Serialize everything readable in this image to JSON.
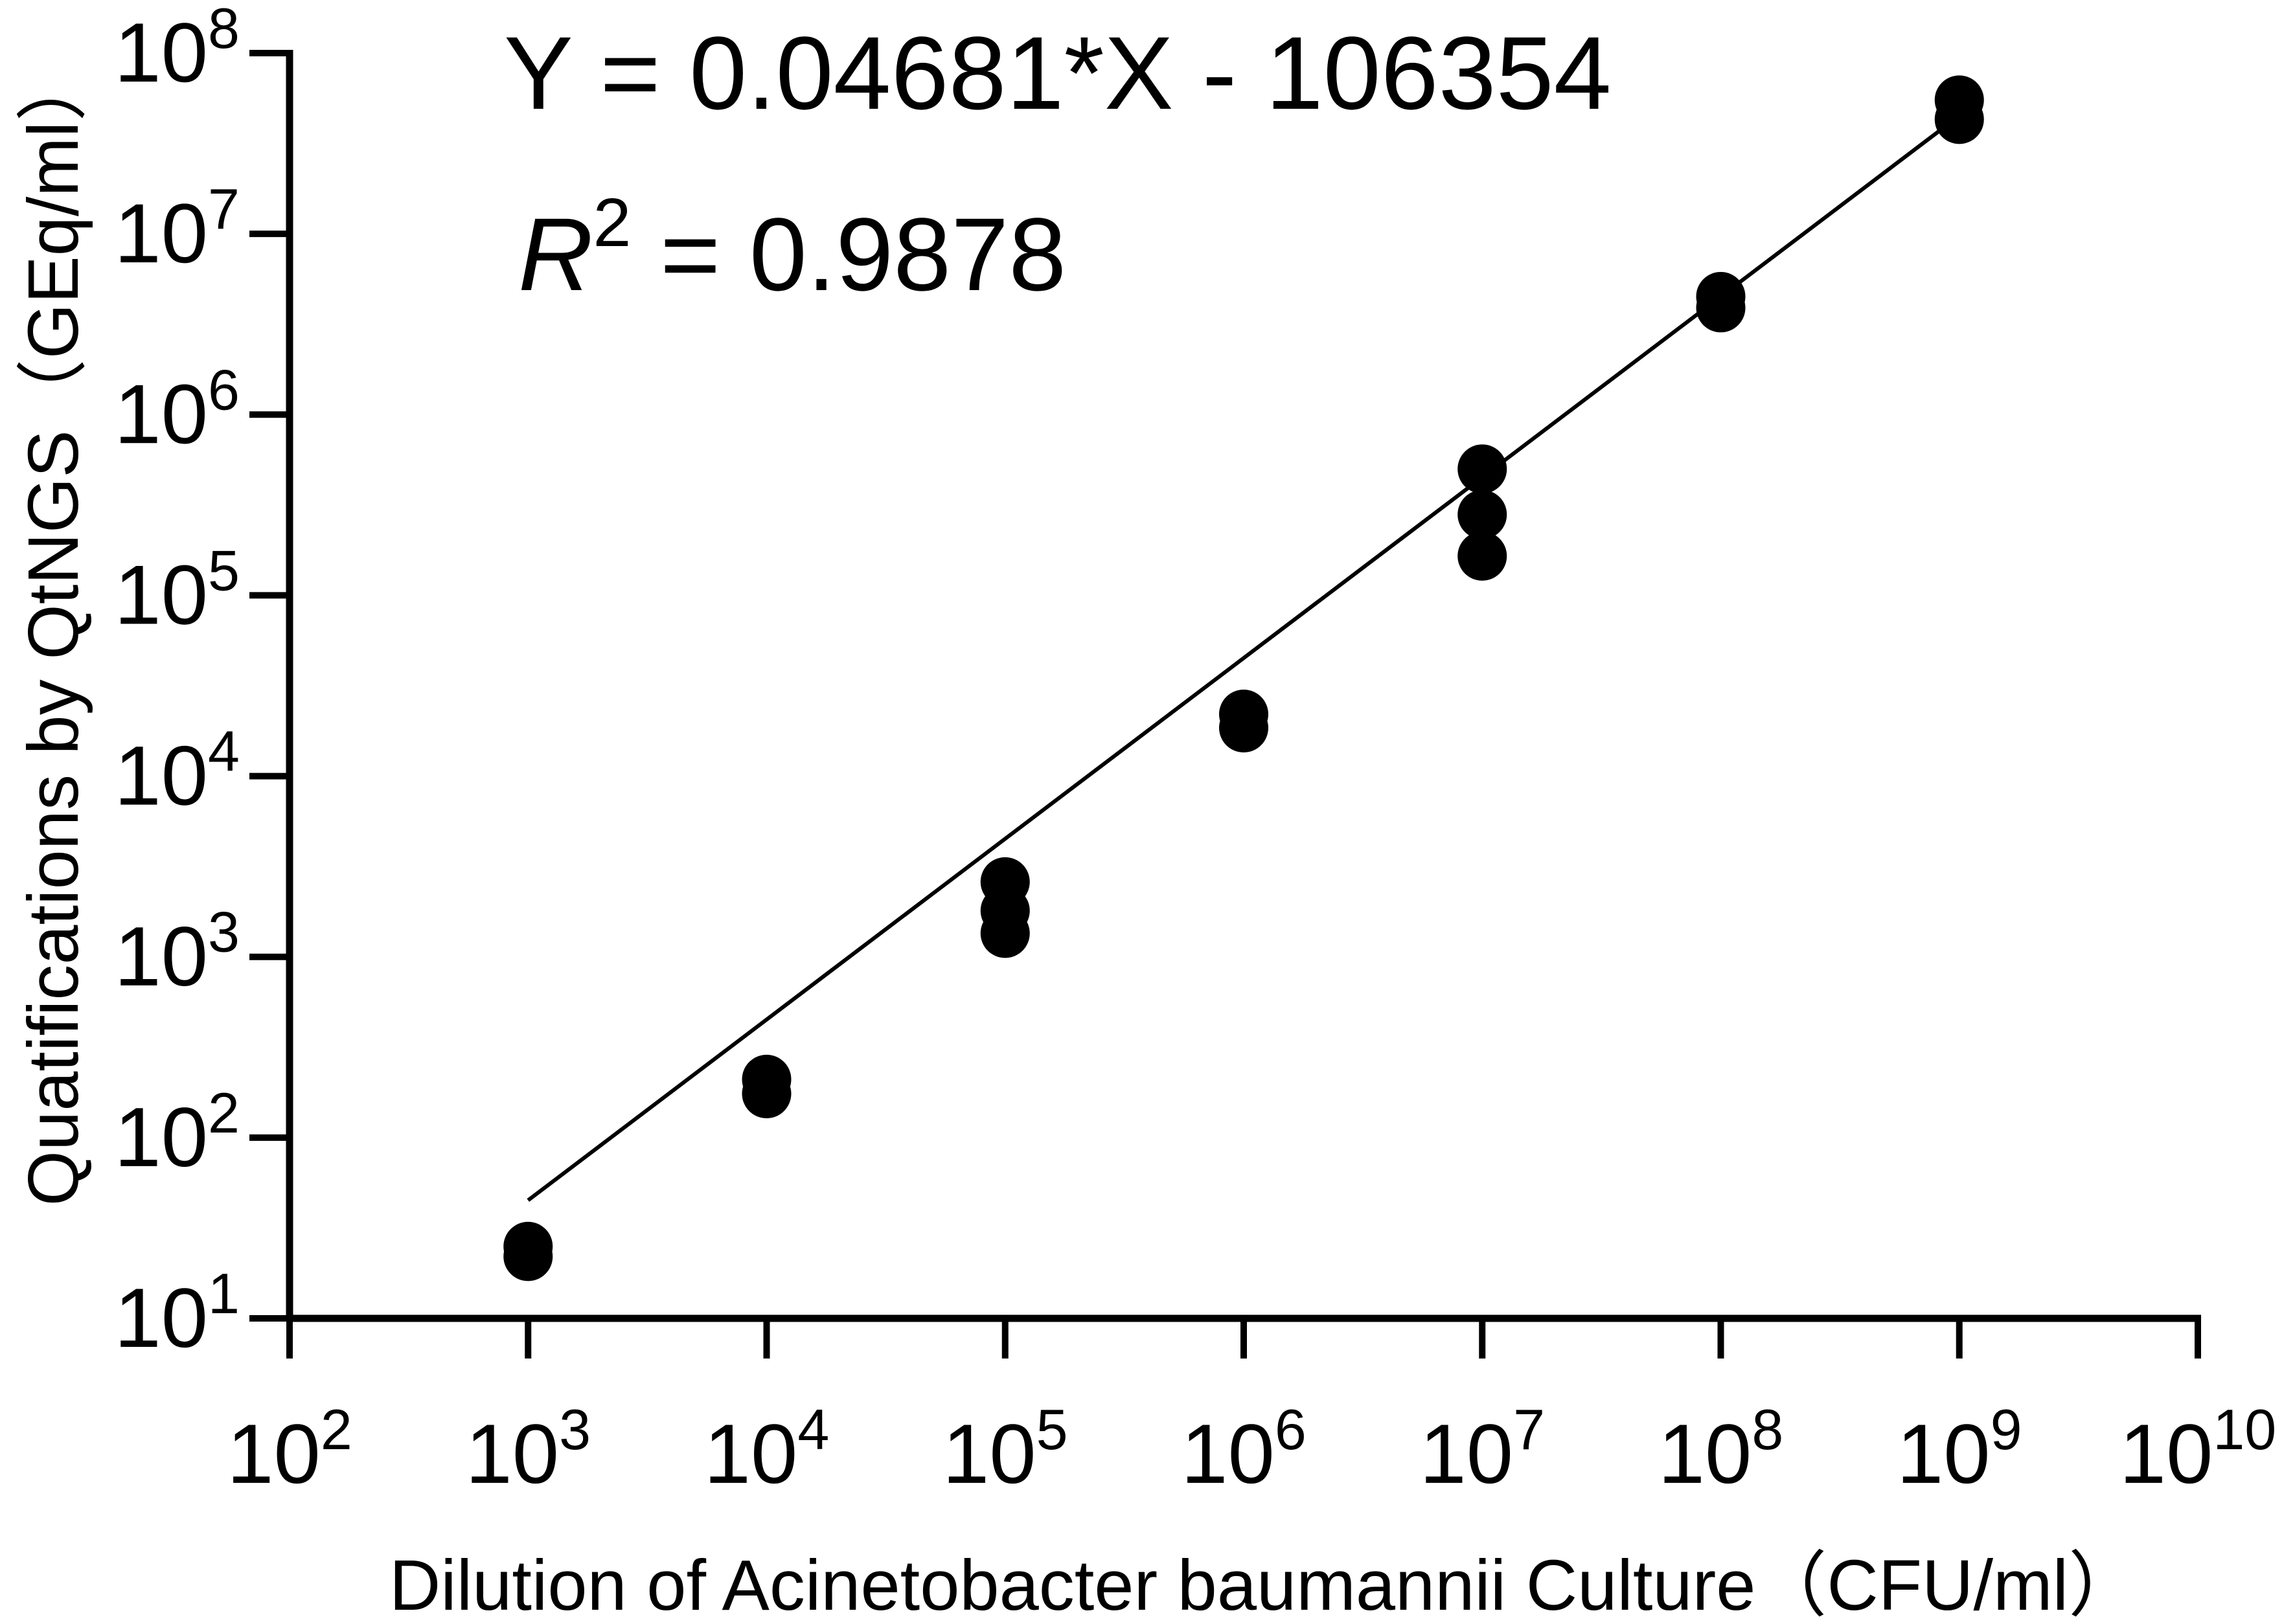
{
  "chart_data": {
    "type": "scatter",
    "x_scale": "log",
    "y_scale": "log",
    "xlim": [
      100,
      10000000000
    ],
    "ylim": [
      10,
      100000000
    ],
    "xlabel": "Dilution of Acinetobacter baumannii Culture（CFU/ml）",
    "ylabel": "Quatifications by QtNGS（GEq/ml）",
    "x_ticks": [
      {
        "base": "10",
        "exp": "2",
        "value": 100
      },
      {
        "base": "10",
        "exp": "3",
        "value": 1000
      },
      {
        "base": "10",
        "exp": "4",
        "value": 10000
      },
      {
        "base": "10",
        "exp": "5",
        "value": 100000
      },
      {
        "base": "10",
        "exp": "6",
        "value": 1000000
      },
      {
        "base": "10",
        "exp": "7",
        "value": 10000000
      },
      {
        "base": "10",
        "exp": "8",
        "value": 100000000
      },
      {
        "base": "10",
        "exp": "9",
        "value": 1000000000
      },
      {
        "base": "10",
        "exp": "10",
        "value": 10000000000
      }
    ],
    "y_ticks": [
      {
        "base": "10",
        "exp": "1",
        "value": 10
      },
      {
        "base": "10",
        "exp": "2",
        "value": 100
      },
      {
        "base": "10",
        "exp": "3",
        "value": 1000
      },
      {
        "base": "10",
        "exp": "4",
        "value": 10000
      },
      {
        "base": "10",
        "exp": "5",
        "value": 100000
      },
      {
        "base": "10",
        "exp": "6",
        "value": 1000000
      },
      {
        "base": "10",
        "exp": "7",
        "value": 10000000
      },
      {
        "base": "10",
        "exp": "8",
        "value": 100000000
      }
    ],
    "points": [
      {
        "x": 1000,
        "y": 25
      },
      {
        "x": 1000,
        "y": 22
      },
      {
        "x": 10000,
        "y": 210
      },
      {
        "x": 10000,
        "y": 175
      },
      {
        "x": 100000,
        "y": 2600
      },
      {
        "x": 100000,
        "y": 1800
      },
      {
        "x": 100000,
        "y": 1350
      },
      {
        "x": 1000000,
        "y": 22000
      },
      {
        "x": 1000000,
        "y": 18500
      },
      {
        "x": 10000000,
        "y": 500000
      },
      {
        "x": 10000000,
        "y": 280000
      },
      {
        "x": 10000000,
        "y": 165000
      },
      {
        "x": 100000000,
        "y": 4500000
      },
      {
        "x": 100000000,
        "y": 3900000
      },
      {
        "x": 1000000000,
        "y": 55000000
      },
      {
        "x": 1000000000,
        "y": 43000000
      }
    ],
    "fit_line": {
      "x_start": 1000,
      "y_start": 45,
      "x_end": 1000000000,
      "y_end": 45000000
    },
    "equation": {
      "text": "Y = 0.04681*X - 106354",
      "r_symbol": "R",
      "r_exp": "2",
      "r_rest": " = 0.9878"
    },
    "grid": false,
    "legend": "none",
    "point_color": "#000000"
  }
}
